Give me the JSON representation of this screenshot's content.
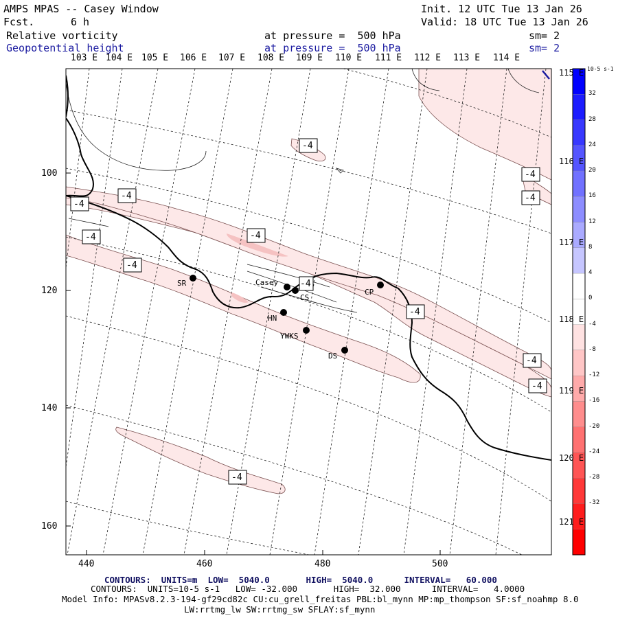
{
  "header": {
    "title": "AMPS MPAS -- Casey Window",
    "fcst_label": "Fcst.",
    "fcst_value": "6 h",
    "init": "Init. 12 UTC Tue 13 Jan 26",
    "valid": "Valid: 18 UTC Tue 13 Jan 26",
    "field1": "Relative vorticity",
    "field1_level": "at pressure =  500 hPa",
    "field1_sm": "sm= 2",
    "field2": "Geopotential height",
    "field2_level": "at pressure =  500 hPa",
    "field2_sm": "sm= 2"
  },
  "lon_top_labels": [
    "103 E",
    "104 E",
    "105 E",
    "106 E",
    "107 E",
    "108 E",
    "109 E",
    "110 E",
    "111 E",
    "112 E",
    "113 E",
    "114 E"
  ],
  "lon_right_labels": [
    "115 E",
    "116 E",
    "117 E",
    "118 E",
    "119 E",
    "120 E",
    "121 E"
  ],
  "x_ticks": [
    "440",
    "460",
    "480",
    "500"
  ],
  "y_ticks": [
    "100",
    "120",
    "140",
    "160"
  ],
  "stations": [
    "SR",
    "Casey",
    "CS",
    "CP",
    "HN",
    "YWKS",
    "DS"
  ],
  "contour_labels": [
    "-4",
    "-4",
    "-4",
    "-4",
    "-4",
    "-4",
    "-4",
    "-4",
    "-4",
    "-4",
    "-4",
    "-4"
  ],
  "colorbar": {
    "unit": "10-5 s-1",
    "labels": [
      "32",
      "28",
      "24",
      "20",
      "16",
      "12",
      "8",
      "4",
      "0",
      "-4",
      "-8",
      "-12",
      "-16",
      "-20",
      "-24",
      "-28",
      "-32"
    ],
    "colors": [
      "#0000ff",
      "#1c1cff",
      "#3838ff",
      "#5555ff",
      "#7171ff",
      "#8d8dff",
      "#aaaaff",
      "#c6c6ff",
      "#ffffff",
      "#ffffff",
      "#ffe2e2",
      "#ffc6c6",
      "#ffaaaa",
      "#ff8d8d",
      "#ff7171",
      "#ff5555",
      "#ff3838",
      "#ff1c1c",
      "#ff0000"
    ]
  },
  "footer": {
    "line1": "CONTOURS:  UNITS=m  LOW=  5040.0       HIGH=  5040.0      INTERVAL=   60.000",
    "line2": "CONTOURS:  UNITS=10-5 s-1   LOW= -32.000       HIGH=  32.000      INTERVAL=   4.0000",
    "line3": "Model Info: MPASv8.2.3-194-gf29cd82c CU:cu_grell_freitas PBL:bl_mynn MP:mp_thompson SF:sf_noahmp 8.0",
    "line4": "LW:rrtmg_lw SW:rrtmg_sw SFLAY:sf_mynn"
  }
}
